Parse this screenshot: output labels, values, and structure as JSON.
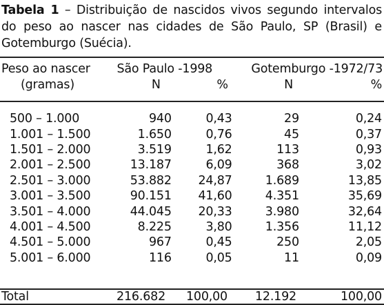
{
  "caption": {
    "label": "Tabela 1",
    "text": " – Distribuição de nascidos vivos segundo intervalos do peso ao nascer nas cidades de São Paulo, SP (Brasil) e Gotemburgo (Suécia)."
  },
  "header": {
    "weight_label_1": "Peso ao nascer",
    "weight_label_2": "(gramas)",
    "group_sp": "São Paulo -1998",
    "group_gt": "Gotemburgo -1972/73",
    "n_label": "N",
    "pct_label": "%"
  },
  "rows": [
    {
      "range": "500 – 1.000",
      "sp_n": "940",
      "sp_pct": "0,43",
      "gt_n": "29",
      "gt_pct": "0,24"
    },
    {
      "range": "1.001 – 1.500",
      "sp_n": "1.650",
      "sp_pct": "0,76",
      "gt_n": "45",
      "gt_pct": "0,37"
    },
    {
      "range": "1.501 – 2.000",
      "sp_n": "3.519",
      "sp_pct": "1,62",
      "gt_n": "113",
      "gt_pct": "0,93"
    },
    {
      "range": "2.001 – 2.500",
      "sp_n": "13.187",
      "sp_pct": "6,09",
      "gt_n": "368",
      "gt_pct": "3,02"
    },
    {
      "range": "2.501 – 3.000",
      "sp_n": "53.882",
      "sp_pct": "24,87",
      "gt_n": "1.689",
      "gt_pct": "13,85"
    },
    {
      "range": "3.001 – 3.500",
      "sp_n": "90.151",
      "sp_pct": "41,60",
      "gt_n": "4.351",
      "gt_pct": "35,69"
    },
    {
      "range": "3.501 – 4.000",
      "sp_n": "44.045",
      "sp_pct": "20,33",
      "gt_n": "3.980",
      "gt_pct": "32,64"
    },
    {
      "range": "4.001 – 4.500",
      "sp_n": "8.225",
      "sp_pct": "3,80",
      "gt_n": "1.356",
      "gt_pct": "11,12"
    },
    {
      "range": "4.501 – 5.000",
      "sp_n": "967",
      "sp_pct": "0,45",
      "gt_n": "250",
      "gt_pct": "2,05"
    },
    {
      "range": "5.001 – 6.000",
      "sp_n": "116",
      "sp_pct": "0,05",
      "gt_n": "11",
      "gt_pct": "0,09"
    }
  ],
  "total": {
    "label": "Total",
    "sp_n": "216.682",
    "sp_pct": "100,00",
    "gt_n": "12.192",
    "gt_pct": "100,00"
  }
}
